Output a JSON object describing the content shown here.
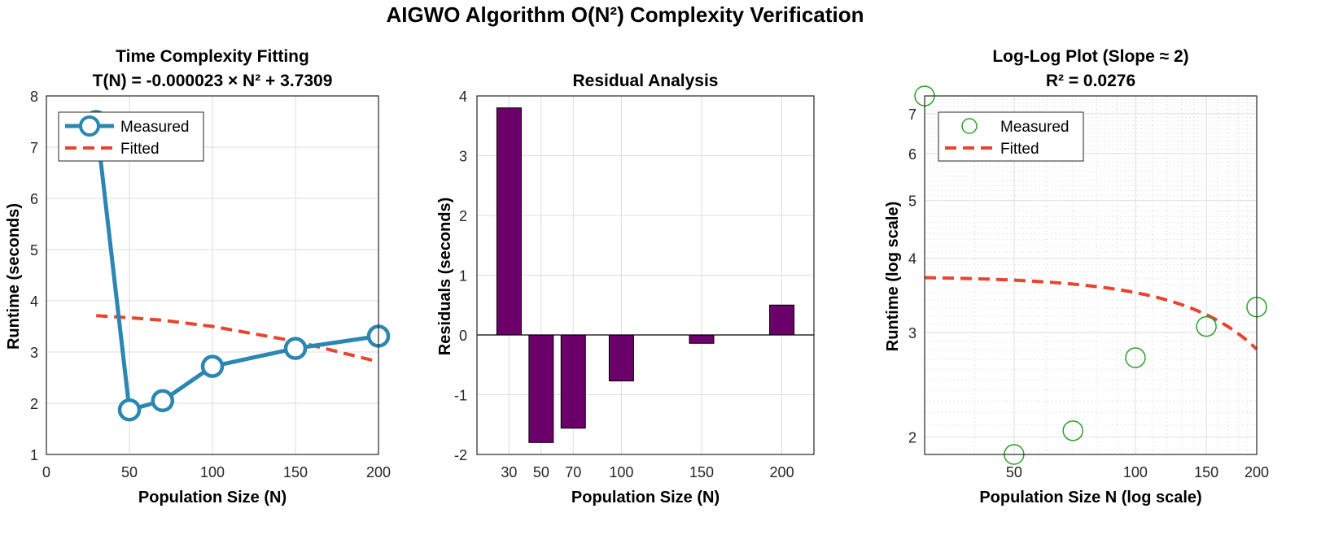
{
  "figure_title": "AIGWO Algorithm O(N²) Complexity Verification",
  "colors": {
    "measured_line": "#2c87b0",
    "fitted_line": "#e8442e",
    "bar": "#6b006b",
    "scatter": "#2aa02a",
    "zero_line": "#000000"
  },
  "chart_data": [
    {
      "type": "line",
      "title_line1": "Time Complexity Fitting",
      "title_line2": "T(N) = -0.000023 × N² + 3.7309",
      "xlabel": "Population Size (N)",
      "ylabel": "Runtime (seconds)",
      "xlim": [
        0,
        200
      ],
      "ylim": [
        1,
        8
      ],
      "xticks": [
        0,
        50,
        100,
        150,
        200
      ],
      "yticks": [
        1,
        2,
        3,
        4,
        5,
        6,
        7,
        8
      ],
      "legend": [
        "Measured",
        "Fitted"
      ],
      "series": [
        {
          "name": "Measured",
          "x": [
            30,
            50,
            70,
            100,
            150,
            200
          ],
          "y": [
            7.5,
            1.87,
            2.05,
            2.72,
            3.07,
            3.31
          ]
        },
        {
          "name": "Fitted",
          "x": [
            30,
            50,
            70,
            100,
            150,
            200
          ],
          "y": [
            3.71,
            3.67,
            3.62,
            3.5,
            3.21,
            2.81
          ],
          "style": "dashed"
        }
      ]
    },
    {
      "type": "bar",
      "title": "Residual Analysis",
      "xlabel": "Population Size (N)",
      "ylabel": "Residuals (seconds)",
      "x": [
        30,
        50,
        70,
        100,
        150,
        200
      ],
      "values": [
        3.8,
        -1.8,
        -1.56,
        -0.77,
        -0.14,
        0.5
      ],
      "xlim": [
        10,
        220
      ],
      "ylim": [
        -2,
        4
      ],
      "xticks": [
        30,
        50,
        70,
        100,
        150,
        200
      ],
      "yticks": [
        -2,
        -1,
        0,
        1,
        2,
        3,
        4
      ]
    },
    {
      "type": "scatter",
      "title_line1": "Log-Log Plot (Slope ≈ 2)",
      "title_line2": "R² = 0.0276",
      "xlabel": "Population Size N (log scale)",
      "ylabel": "Runtime (log scale)",
      "xscale": "log",
      "yscale": "log",
      "xlim": [
        30,
        200
      ],
      "ylim": [
        1.87,
        7.5
      ],
      "xticks": [
        50,
        100,
        150,
        200
      ],
      "yticks": [
        2,
        3,
        4,
        5,
        6,
        7
      ],
      "legend": [
        "Measured",
        "Fitted"
      ],
      "series": [
        {
          "name": "Measured",
          "x": [
            30,
            50,
            70,
            100,
            150,
            200
          ],
          "y": [
            7.5,
            1.87,
            2.05,
            2.72,
            3.07,
            3.31
          ],
          "marker": "open-circle"
        },
        {
          "name": "Fitted",
          "x": [
            30,
            50,
            70,
            100,
            150,
            200
          ],
          "y": [
            3.71,
            3.67,
            3.62,
            3.5,
            3.21,
            2.81
          ],
          "style": "dashed"
        }
      ]
    }
  ]
}
